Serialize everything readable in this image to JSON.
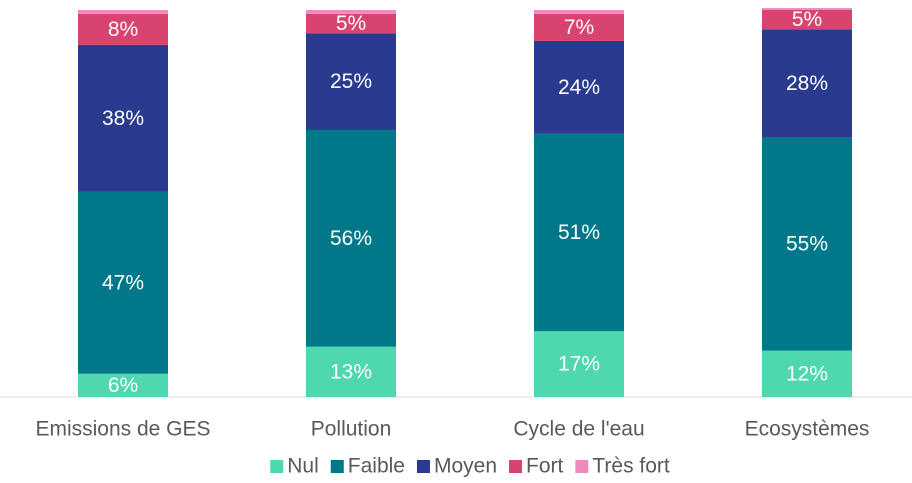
{
  "chart_data": {
    "type": "stacked_bar",
    "categories": [
      "Emissions de GES",
      "Pollution",
      "Cycle de l'eau",
      "Ecosystèmes"
    ],
    "series": [
      {
        "name": "Nul",
        "color": "#4fd8b0",
        "values": [
          6,
          13,
          17,
          12
        ],
        "value_labels": [
          "6%",
          "13%",
          "17%",
          "12%"
        ]
      },
      {
        "name": "Faible",
        "color": "#00788a",
        "values": [
          47,
          56,
          51,
          55
        ],
        "value_labels": [
          "47%",
          "56%",
          "51%",
          "55%"
        ]
      },
      {
        "name": "Moyen",
        "color": "#2a3a8e",
        "values": [
          38,
          25,
          24,
          28
        ],
        "value_labels": [
          "38%",
          "25%",
          "24%",
          "28%"
        ]
      },
      {
        "name": "Fort",
        "color": "#d9436f",
        "values": [
          8,
          5,
          7,
          5
        ],
        "value_labels": [
          "8%",
          "5%",
          "7%",
          "5%"
        ]
      },
      {
        "name": "Très fort",
        "color": "#eb8dbb",
        "values": [
          1,
          1,
          1,
          0.5
        ]
      }
    ],
    "ylim": [
      0,
      100
    ]
  }
}
